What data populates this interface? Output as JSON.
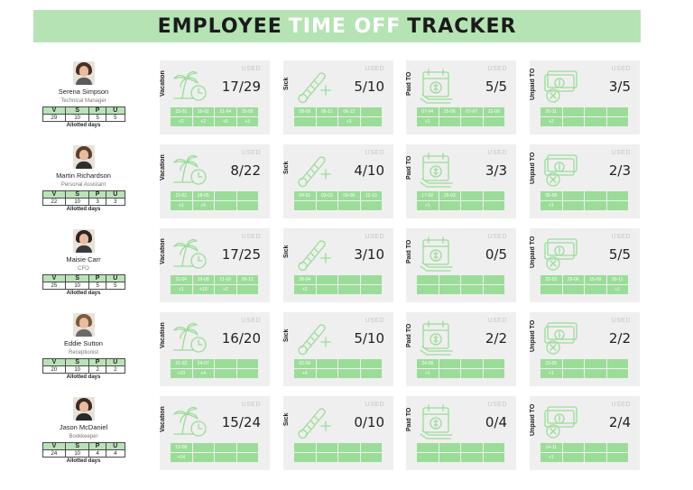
{
  "title": {
    "part1": "EMPLOYEE",
    "part2": "TIME OFF",
    "part3": "TRACKER"
  },
  "allotted_headers": [
    "V",
    "S",
    "P",
    "U"
  ],
  "allotted_label": "Allotted days",
  "used_label": "USED",
  "categories": [
    "Vacation",
    "Sick",
    "Paid TO",
    "Unpaid TO"
  ],
  "colors": {
    "banner": "#b5e3b3",
    "accent": "#9bdc99",
    "card": "#efefef"
  },
  "employees": [
    {
      "name": "Serena Simpson",
      "role": "Technical Manager",
      "allotted": [
        "29",
        "10",
        "5",
        "5"
      ],
      "cards": [
        {
          "used": "17/29",
          "dates": [
            "15-01",
            "16-02",
            "21-04",
            "15-05",
            "",
            "",
            "",
            ""
          ],
          "counts": [
            "+2",
            "+2",
            "+5",
            "+3",
            "",
            "",
            "",
            ""
          ]
        },
        {
          "used": "5/10",
          "dates": [
            "08-09",
            "06-11",
            "06-12",
            "",
            "",
            "",
            "",
            ""
          ],
          "counts": [
            "",
            "",
            "+3",
            "",
            "",
            "",
            "",
            ""
          ]
        },
        {
          "used": "5/5",
          "dates": [
            "07-04",
            "25-06",
            "07-07",
            "22-09",
            "",
            "",
            "",
            ""
          ],
          "counts": [
            "+1",
            "",
            "",
            "",
            "",
            "",
            "",
            ""
          ]
        },
        {
          "used": "3/5",
          "dates": [
            "20-11",
            "",
            "",
            "",
            "",
            "",
            "",
            ""
          ],
          "counts": [
            "+2",
            "",
            "",
            "",
            "",
            "",
            "",
            ""
          ]
        }
      ]
    },
    {
      "name": "Martin Richardson",
      "role": "Personal Assistant",
      "allotted": [
        "22",
        "10",
        "3",
        "3"
      ],
      "cards": [
        {
          "used": "8/22",
          "dates": [
            "11-02",
            "08-05",
            "",
            "",
            "",
            "",
            "",
            ""
          ],
          "counts": [
            "+1",
            "+5",
            "",
            "",
            "",
            "",
            "",
            ""
          ]
        },
        {
          "used": "4/10",
          "dates": [
            "04-01",
            "03-03",
            "09-06",
            "12-10",
            "",
            "",
            "",
            ""
          ],
          "counts": [
            "",
            "",
            "",
            "",
            "",
            "",
            "",
            ""
          ]
        },
        {
          "used": "3/3",
          "dates": [
            "17-02",
            "26-03",
            "",
            "",
            "",
            "",
            "",
            ""
          ],
          "counts": [
            "+1",
            "",
            "",
            "",
            "",
            "",
            "",
            ""
          ]
        },
        {
          "used": "2/3",
          "dates": [
            "05-08",
            "",
            "",
            "",
            "",
            "",
            "",
            ""
          ],
          "counts": [
            "+1",
            "",
            "",
            "",
            "",
            "",
            "",
            ""
          ]
        }
      ]
    },
    {
      "name": "Maisie Carr",
      "role": "CFO",
      "allotted": [
        "25",
        "10",
        "5",
        "5"
      ],
      "cards": [
        {
          "used": "17/25",
          "dates": [
            "11-04",
            "19-08",
            "11-10",
            "06-12",
            "",
            "",
            "",
            ""
          ],
          "counts": [
            "+1",
            "+10",
            "+2",
            "",
            "",
            "",
            "",
            ""
          ]
        },
        {
          "used": "3/10",
          "dates": [
            "28-04",
            "",
            "",
            "",
            "",
            "",
            "",
            ""
          ],
          "counts": [
            "+2",
            "",
            "",
            "",
            "",
            "",
            "",
            ""
          ]
        },
        {
          "used": "0/5",
          "dates": [
            "",
            "",
            "",
            "",
            "",
            "",
            "",
            ""
          ],
          "counts": [
            "",
            "",
            "",
            "",
            "",
            "",
            "",
            ""
          ]
        },
        {
          "used": "5/5",
          "dates": [
            "22-03",
            "29-06",
            "15-09",
            "30-11",
            "",
            "",
            "",
            ""
          ],
          "counts": [
            "",
            "",
            "",
            "+1",
            "",
            "",
            "",
            ""
          ]
        }
      ]
    },
    {
      "name": "Eddie Sutton",
      "role": "Receptionist",
      "allotted": [
        "20",
        "10",
        "2",
        "2"
      ],
      "cards": [
        {
          "used": "16/20",
          "dates": [
            "21-02",
            "04-07",
            "",
            "",
            "",
            "",
            "",
            ""
          ],
          "counts": [
            "+10",
            "+4",
            "",
            "",
            "",
            "",
            "",
            ""
          ]
        },
        {
          "used": "5/10",
          "dates": [
            "02-09",
            "",
            "",
            "",
            "",
            "",
            "",
            ""
          ],
          "counts": [
            "+4",
            "",
            "",
            "",
            "",
            "",
            "",
            ""
          ]
        },
        {
          "used": "2/2",
          "dates": [
            "24-08",
            "",
            "",
            "",
            "",
            "",
            "",
            ""
          ],
          "counts": [
            "+1",
            "",
            "",
            "",
            "",
            "",
            "",
            ""
          ]
        },
        {
          "used": "2/2",
          "dates": [
            "23-05",
            "",
            "",
            "",
            "",
            "",
            "",
            ""
          ],
          "counts": [
            "+1",
            "",
            "",
            "",
            "",
            "",
            "",
            ""
          ]
        }
      ]
    },
    {
      "name": "Jason McDaniel",
      "role": "Bookkeeper",
      "allotted": [
        "24",
        "10",
        "4",
        "4"
      ],
      "cards": [
        {
          "used": "15/24",
          "dates": [
            "12-08",
            "",
            "",
            "",
            "",
            "",
            "",
            ""
          ],
          "counts": [
            "+14",
            "",
            "",
            "",
            "",
            "",
            "",
            ""
          ]
        },
        {
          "used": "0/10",
          "dates": [
            "",
            "",
            "",
            "",
            "",
            "",
            "",
            ""
          ],
          "counts": [
            "",
            "",
            "",
            "",
            "",
            "",
            "",
            ""
          ]
        },
        {
          "used": "0/4",
          "dates": [
            "",
            "",
            "",
            "",
            "",
            "",
            "",
            ""
          ],
          "counts": [
            "",
            "",
            "",
            "",
            "",
            "",
            "",
            ""
          ]
        },
        {
          "used": "2/4",
          "dates": [
            "14-11",
            "",
            "",
            "",
            "",
            "",
            "",
            ""
          ],
          "counts": [
            "+1",
            "",
            "",
            "",
            "",
            "",
            "",
            ""
          ]
        }
      ]
    }
  ],
  "avatar_colors": [
    {
      "hair": "#4a2f25",
      "body": "#5a5a5a"
    },
    {
      "hair": "#5c3f2b",
      "body": "#2e2e2e"
    },
    {
      "hair": "#2f2220",
      "body": "#3a3a3a"
    },
    {
      "hair": "#7a5a3a",
      "body": "#6a6a6a"
    },
    {
      "hair": "#3d2a20",
      "body": "#2a2a2a"
    }
  ],
  "icons": [
    "palm-tree-clock-icon",
    "thermometer-plus-icon",
    "calendar-money-icon",
    "money-cross-icon"
  ]
}
